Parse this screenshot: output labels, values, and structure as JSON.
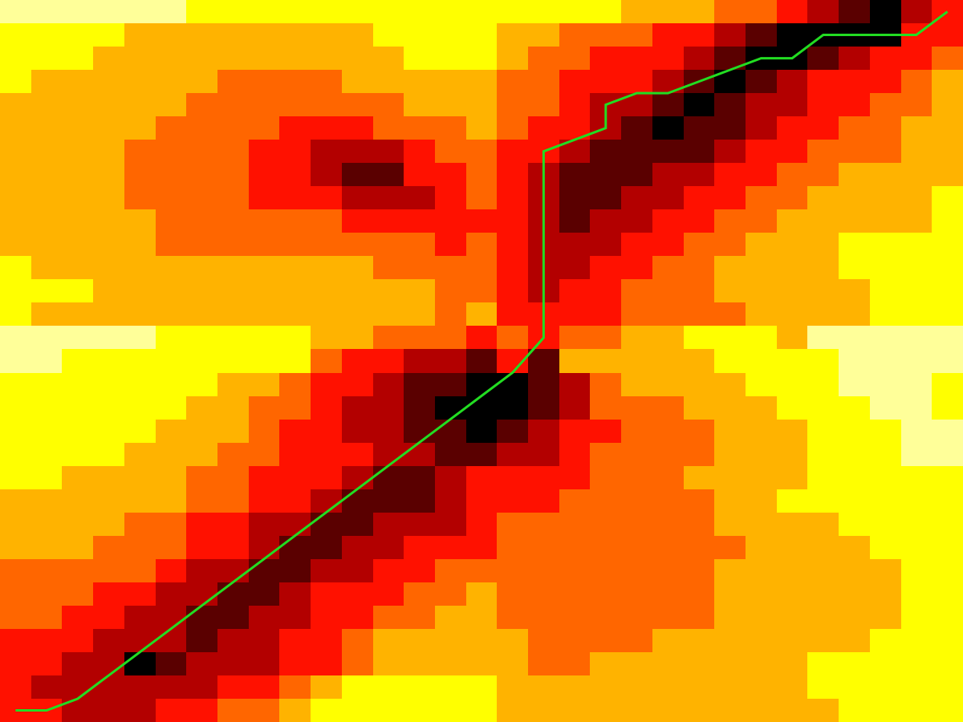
{
  "chart_data": {
    "type": "heatmap",
    "title": "",
    "xlabel": "",
    "ylabel": "",
    "grid": false,
    "legend": "none",
    "rows": 31,
    "cols": 31,
    "palette": [
      "#000000",
      "#5a0000",
      "#b30000",
      "#ff1100",
      "#ff6600",
      "#ffb300",
      "#ffff00",
      "#ffff99"
    ],
    "grid_values": [
      [
        7,
        7,
        7,
        7,
        7,
        7,
        6,
        6,
        6,
        6,
        6,
        6,
        6,
        6,
        6,
        6,
        6,
        6,
        6,
        6,
        5,
        5,
        5,
        4,
        4,
        3,
        2,
        1,
        0,
        2,
        3
      ],
      [
        6,
        6,
        6,
        6,
        5,
        5,
        5,
        5,
        5,
        5,
        5,
        5,
        6,
        6,
        6,
        6,
        5,
        5,
        4,
        4,
        4,
        3,
        3,
        2,
        1,
        0,
        0,
        0,
        0,
        3,
        3
      ],
      [
        6,
        6,
        6,
        5,
        5,
        5,
        5,
        5,
        5,
        5,
        5,
        5,
        5,
        6,
        6,
        6,
        5,
        4,
        4,
        3,
        3,
        3,
        2,
        1,
        0,
        0,
        1,
        2,
        3,
        3,
        4
      ],
      [
        6,
        5,
        5,
        5,
        5,
        5,
        5,
        4,
        4,
        4,
        4,
        5,
        5,
        5,
        5,
        5,
        4,
        4,
        3,
        3,
        3,
        2,
        1,
        0,
        1,
        2,
        3,
        3,
        3,
        4,
        5
      ],
      [
        5,
        5,
        5,
        5,
        5,
        5,
        4,
        4,
        4,
        4,
        4,
        4,
        4,
        5,
        5,
        5,
        4,
        4,
        3,
        2,
        2,
        1,
        0,
        1,
        2,
        2,
        3,
        3,
        4,
        4,
        5
      ],
      [
        5,
        5,
        5,
        5,
        5,
        4,
        4,
        4,
        4,
        3,
        3,
        3,
        4,
        4,
        4,
        5,
        4,
        3,
        3,
        2,
        1,
        0,
        1,
        1,
        2,
        3,
        3,
        4,
        4,
        5,
        5
      ],
      [
        5,
        5,
        5,
        5,
        4,
        4,
        4,
        4,
        3,
        3,
        2,
        2,
        2,
        3,
        4,
        4,
        3,
        3,
        2,
        1,
        1,
        1,
        1,
        2,
        3,
        3,
        4,
        4,
        4,
        5,
        5
      ],
      [
        5,
        5,
        5,
        5,
        4,
        4,
        4,
        4,
        3,
        3,
        2,
        1,
        1,
        3,
        3,
        4,
        3,
        2,
        1,
        1,
        1,
        2,
        2,
        3,
        3,
        4,
        4,
        5,
        5,
        5,
        5
      ],
      [
        5,
        5,
        5,
        5,
        4,
        4,
        4,
        4,
        3,
        3,
        3,
        2,
        2,
        2,
        3,
        4,
        3,
        2,
        1,
        1,
        2,
        2,
        3,
        3,
        4,
        4,
        5,
        5,
        5,
        5,
        6
      ],
      [
        5,
        5,
        5,
        5,
        5,
        4,
        4,
        4,
        4,
        4,
        4,
        3,
        3,
        3,
        3,
        3,
        3,
        2,
        1,
        2,
        2,
        3,
        3,
        4,
        4,
        5,
        5,
        5,
        5,
        5,
        6
      ],
      [
        5,
        5,
        5,
        5,
        5,
        4,
        4,
        4,
        4,
        4,
        4,
        4,
        4,
        4,
        3,
        4,
        3,
        2,
        2,
        2,
        3,
        3,
        4,
        4,
        5,
        5,
        5,
        6,
        6,
        6,
        6
      ],
      [
        6,
        5,
        5,
        5,
        5,
        5,
        5,
        5,
        5,
        5,
        5,
        5,
        4,
        4,
        4,
        4,
        3,
        2,
        2,
        3,
        3,
        4,
        4,
        5,
        5,
        5,
        5,
        6,
        6,
        6,
        6
      ],
      [
        6,
        6,
        6,
        5,
        5,
        5,
        5,
        5,
        5,
        5,
        5,
        5,
        5,
        5,
        4,
        4,
        3,
        2,
        3,
        3,
        4,
        4,
        4,
        5,
        5,
        5,
        5,
        5,
        6,
        6,
        6
      ],
      [
        6,
        5,
        5,
        5,
        5,
        5,
        5,
        5,
        5,
        5,
        5,
        5,
        5,
        5,
        4,
        5,
        3,
        3,
        3,
        3,
        4,
        4,
        4,
        4,
        5,
        5,
        5,
        5,
        6,
        6,
        6
      ],
      [
        7,
        7,
        7,
        7,
        7,
        6,
        6,
        6,
        6,
        6,
        5,
        5,
        4,
        4,
        4,
        3,
        4,
        3,
        4,
        4,
        5,
        5,
        6,
        6,
        6,
        5,
        7,
        7,
        7,
        7,
        7
      ],
      [
        7,
        7,
        6,
        6,
        6,
        6,
        6,
        6,
        6,
        6,
        4,
        3,
        3,
        2,
        2,
        1,
        3,
        1,
        5,
        5,
        5,
        5,
        5,
        6,
        6,
        6,
        6,
        7,
        7,
        7,
        7
      ],
      [
        6,
        6,
        6,
        6,
        6,
        6,
        6,
        5,
        5,
        4,
        3,
        3,
        2,
        1,
        1,
        0,
        0,
        1,
        2,
        4,
        5,
        5,
        5,
        5,
        6,
        6,
        6,
        7,
        7,
        7,
        6
      ],
      [
        6,
        6,
        6,
        6,
        6,
        6,
        5,
        5,
        4,
        4,
        3,
        2,
        2,
        1,
        0,
        0,
        0,
        1,
        2,
        4,
        4,
        4,
        5,
        5,
        5,
        6,
        6,
        6,
        7,
        7,
        6
      ],
      [
        6,
        6,
        6,
        6,
        6,
        5,
        5,
        5,
        4,
        3,
        3,
        2,
        2,
        1,
        1,
        0,
        1,
        2,
        3,
        3,
        4,
        4,
        4,
        5,
        5,
        5,
        6,
        6,
        6,
        7,
        7
      ],
      [
        6,
        6,
        6,
        6,
        5,
        5,
        5,
        4,
        4,
        3,
        3,
        3,
        2,
        2,
        1,
        1,
        2,
        2,
        3,
        4,
        4,
        4,
        4,
        5,
        5,
        5,
        6,
        6,
        6,
        7,
        7
      ],
      [
        6,
        6,
        5,
        5,
        5,
        5,
        4,
        4,
        3,
        3,
        3,
        2,
        1,
        1,
        2,
        3,
        3,
        3,
        3,
        4,
        4,
        4,
        5,
        5,
        5,
        5,
        6,
        6,
        6,
        6,
        6
      ],
      [
        5,
        5,
        5,
        5,
        5,
        5,
        4,
        4,
        3,
        3,
        2,
        1,
        1,
        1,
        2,
        3,
        3,
        3,
        4,
        4,
        4,
        4,
        4,
        5,
        5,
        6,
        6,
        6,
        6,
        6,
        6
      ],
      [
        5,
        5,
        5,
        5,
        4,
        4,
        3,
        3,
        2,
        2,
        1,
        1,
        2,
        2,
        2,
        3,
        4,
        4,
        4,
        4,
        4,
        4,
        4,
        5,
        5,
        5,
        5,
        6,
        6,
        6,
        6
      ],
      [
        5,
        5,
        5,
        4,
        4,
        4,
        3,
        3,
        2,
        1,
        1,
        2,
        2,
        3,
        3,
        3,
        4,
        4,
        4,
        4,
        4,
        4,
        4,
        4,
        5,
        5,
        5,
        5,
        6,
        6,
        6
      ],
      [
        4,
        4,
        4,
        4,
        4,
        3,
        2,
        2,
        1,
        1,
        2,
        2,
        3,
        3,
        4,
        4,
        4,
        4,
        4,
        4,
        4,
        4,
        4,
        5,
        5,
        5,
        5,
        5,
        5,
        6,
        6
      ],
      [
        4,
        4,
        4,
        3,
        3,
        2,
        2,
        1,
        1,
        2,
        3,
        3,
        3,
        4,
        4,
        5,
        4,
        4,
        4,
        4,
        4,
        4,
        4,
        5,
        5,
        5,
        5,
        5,
        5,
        6,
        6
      ],
      [
        4,
        4,
        3,
        3,
        2,
        2,
        1,
        1,
        2,
        2,
        3,
        3,
        4,
        4,
        5,
        5,
        4,
        4,
        4,
        4,
        4,
        4,
        4,
        5,
        5,
        5,
        5,
        5,
        5,
        6,
        6
      ],
      [
        3,
        3,
        3,
        2,
        2,
        2,
        1,
        2,
        2,
        3,
        3,
        4,
        5,
        5,
        5,
        5,
        5,
        4,
        4,
        4,
        4,
        5,
        5,
        5,
        5,
        5,
        5,
        5,
        6,
        6,
        6
      ],
      [
        3,
        3,
        2,
        2,
        0,
        1,
        2,
        2,
        2,
        3,
        3,
        4,
        5,
        5,
        5,
        5,
        5,
        4,
        4,
        5,
        5,
        5,
        5,
        5,
        5,
        5,
        6,
        6,
        6,
        6,
        6
      ],
      [
        3,
        2,
        2,
        2,
        2,
        2,
        2,
        3,
        3,
        4,
        5,
        6,
        6,
        6,
        6,
        6,
        5,
        5,
        5,
        5,
        5,
        5,
        5,
        5,
        5,
        5,
        6,
        6,
        6,
        6,
        6
      ],
      [
        3,
        3,
        2,
        2,
        2,
        3,
        3,
        4,
        4,
        5,
        6,
        6,
        6,
        6,
        6,
        6,
        5,
        5,
        5,
        5,
        5,
        5,
        5,
        5,
        5,
        5,
        5,
        6,
        6,
        6,
        6
      ]
    ],
    "path": {
      "color": "#22dd22",
      "points": [
        [
          0.5,
          30.5
        ],
        [
          1.5,
          30.5
        ],
        [
          2.5,
          30
        ],
        [
          3.5,
          29
        ],
        [
          4.5,
          28
        ],
        [
          5.5,
          27
        ],
        [
          6.5,
          26
        ],
        [
          7.5,
          25
        ],
        [
          8.5,
          24
        ],
        [
          9.5,
          23
        ],
        [
          10.5,
          22
        ],
        [
          11.5,
          21
        ],
        [
          12.5,
          20
        ],
        [
          13.5,
          19
        ],
        [
          14.5,
          18
        ],
        [
          15.5,
          17
        ],
        [
          16.5,
          16
        ],
        [
          17.5,
          14.5
        ],
        [
          17.5,
          13.5
        ],
        [
          17.5,
          12.5
        ],
        [
          17.5,
          11.5
        ],
        [
          17.5,
          10.5
        ],
        [
          17.5,
          9.5
        ],
        [
          17.5,
          8.5
        ],
        [
          17.5,
          7.5
        ],
        [
          17.5,
          6.5
        ],
        [
          18.5,
          6
        ],
        [
          19.5,
          5.5
        ],
        [
          19.5,
          5
        ],
        [
          19.5,
          4.5
        ],
        [
          20.5,
          4
        ],
        [
          21.5,
          4
        ],
        [
          22.5,
          3.5
        ],
        [
          23.5,
          3
        ],
        [
          24.5,
          2.5
        ],
        [
          25.5,
          2.5
        ],
        [
          26.5,
          1.5
        ],
        [
          27.5,
          1.5
        ],
        [
          28.5,
          1.5
        ],
        [
          29.5,
          1.5
        ],
        [
          30.5,
          0.5
        ]
      ]
    }
  }
}
